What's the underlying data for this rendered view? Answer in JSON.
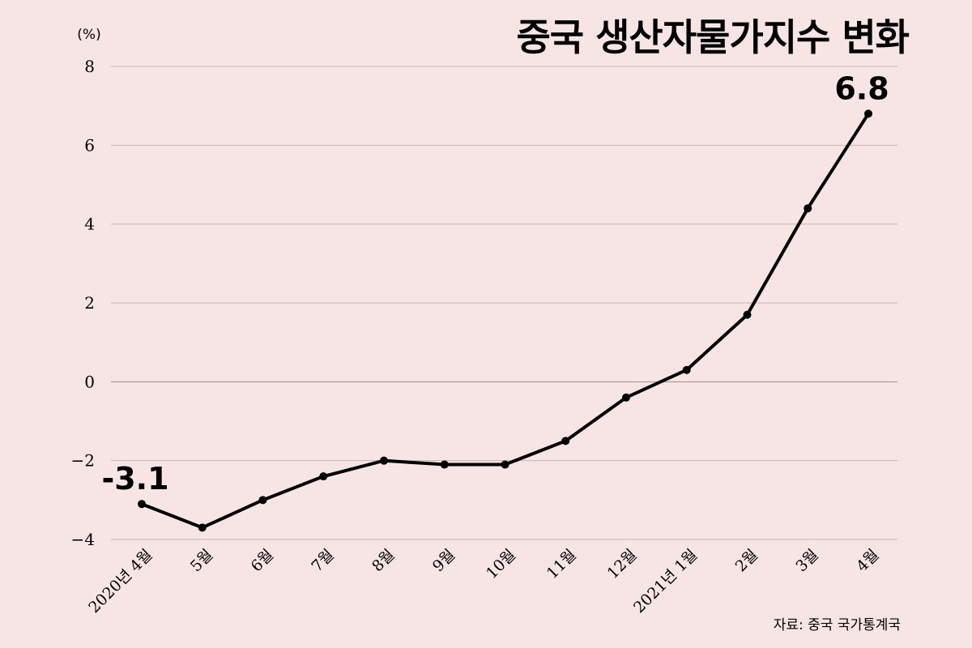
{
  "chart_data": {
    "type": "line",
    "title": "중국 생산자물가지수 변화",
    "ylabel": "(%)",
    "ylim": [
      -4,
      8
    ],
    "yticks": [
      8,
      6,
      4,
      2,
      0,
      -2,
      -4
    ],
    "ytick_labels": [
      "8",
      "6",
      "4",
      "2",
      "0",
      "−2",
      "−4"
    ],
    "categories": [
      "2020년 4월",
      "5월",
      "6월",
      "7월",
      "8월",
      "9월",
      "10월",
      "11월",
      "12월",
      "2021년 1월",
      "2월",
      "3월",
      "4월"
    ],
    "series": [
      {
        "values": [
          -3.1,
          -3.7,
          -3.0,
          -2.4,
          -2.0,
          -2.1,
          -2.1,
          -1.5,
          -0.4,
          0.3,
          1.7,
          4.4,
          6.8
        ]
      }
    ],
    "annotations": [
      {
        "index": 0,
        "text": "-3.1"
      },
      {
        "index": 12,
        "text": "6.8"
      }
    ],
    "grid": true,
    "source": "자료: 중국 국가통계국",
    "line_color": "#000000",
    "background_color": "#f7e4e4"
  }
}
